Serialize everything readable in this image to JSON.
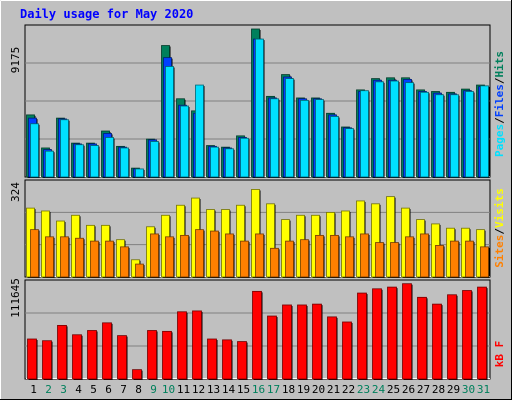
{
  "chart_data": {
    "type": "bar",
    "title": "Daily usage for May 2020",
    "colors": {
      "background": "#C0C0C0",
      "title": "#0000FF",
      "hits": "#00805C",
      "files": "#0040FF",
      "pages": "#00E0FF",
      "visits": "#FFFF00",
      "sites": "#FF8000",
      "kbytes": "#FF0000",
      "weekend_label": "#00805C",
      "weekday_label": "#000000"
    },
    "categories": [
      "1",
      "2",
      "3",
      "4",
      "5",
      "6",
      "7",
      "8",
      "9",
      "10",
      "11",
      "12",
      "13",
      "14",
      "15",
      "16",
      "17",
      "18",
      "19",
      "20",
      "21",
      "22",
      "23",
      "24",
      "25",
      "26",
      "27",
      "28",
      "29",
      "30",
      "31"
    ],
    "weekend_days": [
      "2",
      "3",
      "9",
      "10",
      "16",
      "17",
      "23",
      "24",
      "30",
      "31"
    ],
    "panels": [
      {
        "id": "hits",
        "max_label": "9175",
        "ylim": [
          0,
          9175
        ],
        "legend": [
          "Pages",
          "/",
          "Files",
          "/",
          "Hits"
        ],
        "series": [
          {
            "name": "Hits",
            "values": [
              3850,
              1800,
              3650,
              2100,
              2100,
              2850,
              1900,
              550,
              2350,
              8150,
              4850,
              4100,
              1950,
              1850,
              2550,
              9175,
              5000,
              6350,
              4900,
              4900,
              3950,
              3100,
              5400,
              6100,
              6150,
              6150,
              5400,
              5300,
              5250,
              5450,
              5700
            ]
          },
          {
            "name": "Files",
            "values": [
              3650,
              1700,
              3600,
              2050,
              2050,
              2700,
              1850,
              500,
              2300,
              7400,
              4450,
              3950,
              1900,
              1800,
              2450,
              8550,
              4900,
              6200,
              4850,
              4850,
              3850,
              3050,
              5300,
              6000,
              6000,
              6050,
              5300,
              5200,
              5150,
              5350,
              5600
            ]
          },
          {
            "name": "Pages",
            "values": [
              3300,
              1600,
              3550,
              2000,
              1950,
              2450,
              1800,
              500,
              2200,
              6850,
              4400,
              5700,
              1850,
              1750,
              2400,
              8550,
              4850,
              6100,
              4750,
              4800,
              3750,
              3000,
              5350,
              5900,
              5950,
              5850,
              5250,
              5100,
              5100,
              5300,
              5650
            ]
          }
        ]
      },
      {
        "id": "visits",
        "max_label": "324",
        "ylim": [
          0,
          324
        ],
        "legend": [
          "Sites",
          "/",
          "Visits"
        ],
        "series": [
          {
            "name": "Visits",
            "values": [
              240,
              230,
              195,
              215,
              180,
              180,
              130,
              60,
              175,
              215,
              250,
              275,
              235,
              235,
              250,
              305,
              255,
              200,
              215,
              215,
              225,
              230,
              265,
              255,
              280,
              240,
              200,
              185,
              170,
              170,
              165
            ]
          },
          {
            "name": "Sites",
            "values": [
              165,
              140,
              140,
              135,
              125,
              125,
              105,
              45,
              150,
              140,
              145,
              165,
              160,
              150,
              125,
              150,
              100,
              125,
              130,
              145,
              145,
              140,
              150,
              120,
              120,
              140,
              150,
              110,
              125,
              125,
              105
            ]
          }
        ]
      },
      {
        "id": "kbytes",
        "max_label": "111645",
        "ylim": [
          0,
          111645
        ],
        "legend": [
          "kB F"
        ],
        "series": [
          {
            "name": "kB F",
            "values": [
              47000,
              45000,
              63000,
              52000,
              57000,
              66000,
              51000,
              11000,
              57000,
              56000,
              79000,
              80000,
              47000,
              46000,
              44000,
              103000,
              74000,
              87000,
              87000,
              88000,
              73000,
              67000,
              101000,
              106000,
              108000,
              112000,
              96000,
              88000,
              99000,
              104000,
              108000
            ]
          }
        ]
      }
    ]
  }
}
